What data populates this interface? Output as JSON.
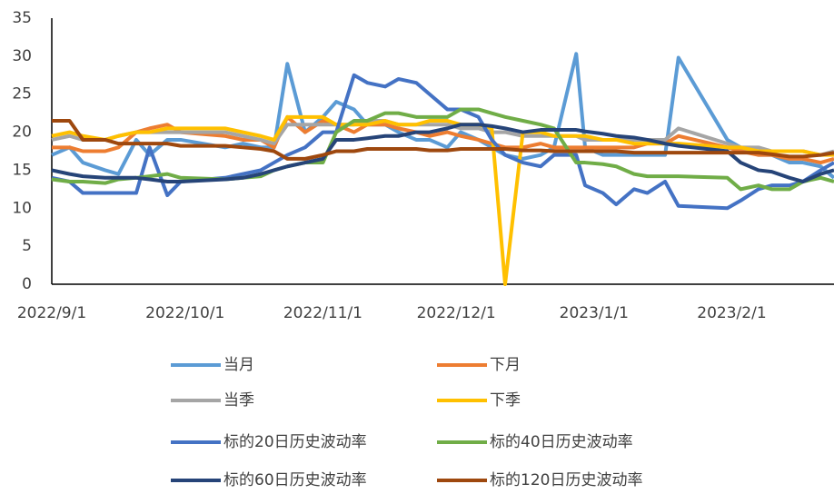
{
  "chart_data": {
    "type": "line",
    "x": [
      "2022/9/1",
      "2022/9/5",
      "2022/9/8",
      "2022/9/13",
      "2022/9/16",
      "2022/9/20",
      "2022/9/23",
      "2022/9/27",
      "2022/9/30",
      "2022/10/10",
      "2022/10/14",
      "2022/10/18",
      "2022/10/21",
      "2022/10/24",
      "2022/10/28",
      "2022/11/1",
      "2022/11/4",
      "2022/11/8",
      "2022/11/11",
      "2022/11/15",
      "2022/11/18",
      "2022/11/22",
      "2022/11/25",
      "2022/11/29",
      "2022/12/2",
      "2022/12/6",
      "2022/12/9",
      "2022/12/12",
      "2022/12/16",
      "2022/12/20",
      "2022/12/23",
      "2022/12/28",
      "2022/12/30",
      "2023/1/3",
      "2023/1/6",
      "2023/1/10",
      "2023/1/13",
      "2023/1/17",
      "2023/1/20",
      "2023/1/31",
      "2023/2/3",
      "2023/2/7",
      "2023/2/10",
      "2023/2/14",
      "2023/2/17",
      "2023/2/21",
      "2023/2/24"
    ],
    "xlim": [
      "2022/9/1",
      "2023/2/24"
    ],
    "xticks": [
      "2022/9/1",
      "2022/10/1",
      "2022/11/1",
      "2022/12/1",
      "2023/1/1",
      "2023/2/1"
    ],
    "ylim": [
      0,
      35
    ],
    "yticks": [
      0,
      5,
      10,
      15,
      20,
      25,
      30,
      35
    ],
    "grid": false,
    "series": [
      {
        "name": "当月",
        "color": "#5b9bd5",
        "values": [
          17,
          18,
          16,
          15,
          14.5,
          19,
          17,
          19,
          19,
          18,
          18.5,
          18,
          18,
          29,
          20,
          22,
          24,
          23,
          21,
          21,
          20,
          19,
          19,
          18,
          20,
          19,
          18,
          17,
          16.5,
          17,
          18,
          30.3,
          18,
          17,
          17,
          17,
          17,
          17,
          29.8,
          19,
          18,
          17,
          17,
          16,
          16,
          15.5,
          14
        ]
      },
      {
        "name": "下月",
        "color": "#ed7d31",
        "values": [
          18,
          18,
          17.5,
          17.5,
          18,
          20,
          20.5,
          21,
          20,
          19.5,
          19,
          19,
          18,
          22,
          20,
          21.5,
          21,
          20,
          21,
          21,
          20.5,
          20,
          19.5,
          20,
          19.5,
          19,
          18.5,
          18,
          18,
          18.5,
          18,
          18,
          18,
          18,
          18,
          18,
          18.5,
          18.5,
          19.5,
          18,
          17.5,
          17,
          17,
          16.5,
          16.5,
          16,
          16.5
        ]
      },
      {
        "name": "当季",
        "color": "#a5a5a5",
        "values": [
          19,
          19.5,
          19,
          19,
          19.5,
          20,
          20,
          20,
          20,
          20,
          19.5,
          19,
          18.5,
          21,
          21,
          21,
          21,
          21,
          21.5,
          21.5,
          21,
          21,
          21,
          21,
          20.5,
          20.5,
          20,
          20,
          19.5,
          19.5,
          19.5,
          19.5,
          19,
          19,
          19,
          19,
          19,
          19,
          20.5,
          18.5,
          18,
          18,
          17.5,
          17.5,
          17.5,
          17,
          17.5
        ]
      },
      {
        "name": "下季",
        "color": "#ffc000",
        "values": [
          19.5,
          20,
          19.5,
          19,
          19.5,
          20,
          20,
          20.5,
          20.5,
          20.5,
          20,
          19.5,
          19,
          22,
          22,
          22,
          21,
          21,
          21,
          21.5,
          21,
          21,
          21.5,
          21.5,
          21,
          21,
          20.5,
          0,
          20,
          20,
          19.5,
          19.5,
          19.5,
          19,
          19,
          18.5,
          18.5,
          18.5,
          18.5,
          18,
          18,
          17.5,
          17.5,
          17.5,
          17.5,
          17,
          17
        ]
      },
      {
        "name": "标的20日历史波动率",
        "color": "#4472c4",
        "values": [
          14,
          13.5,
          12,
          12,
          12,
          12,
          18,
          11.7,
          13.5,
          14,
          14.5,
          15,
          16,
          17,
          18,
          20,
          20,
          27.5,
          26.5,
          26,
          27,
          26.5,
          25,
          23,
          23,
          22,
          19,
          17,
          16,
          15.5,
          17,
          17,
          13,
          12,
          10.5,
          12.5,
          12,
          13.5,
          10.3,
          10,
          11,
          12.5,
          13,
          13,
          13.5,
          15,
          16
        ]
      },
      {
        "name": "标的40日历史波动率",
        "color": "#70ad47",
        "values": [
          13.8,
          13.5,
          13.5,
          13.3,
          13.8,
          14,
          14.2,
          14.5,
          14,
          13.8,
          14,
          14.2,
          15,
          15.5,
          16,
          16,
          20,
          21.5,
          21.5,
          22.5,
          22.5,
          22,
          22,
          22,
          23,
          23,
          22.5,
          22,
          21.5,
          21,
          20.5,
          16,
          16,
          15.8,
          15.5,
          14.5,
          14.2,
          14.2,
          14.2,
          14,
          12.5,
          13,
          12.5,
          12.5,
          13.5,
          14,
          13.5
        ]
      },
      {
        "name": "标的60日历史波动率",
        "color": "#264478",
        "values": [
          15,
          14.5,
          14.2,
          14,
          14,
          14,
          13.8,
          13.5,
          13.5,
          13.8,
          14,
          14.5,
          15,
          15.5,
          16,
          16.5,
          19,
          19,
          19.2,
          19.5,
          19.5,
          20,
          20,
          20.5,
          21,
          21,
          20.8,
          20.5,
          20,
          20.3,
          20.3,
          20.3,
          20.1,
          19.8,
          19.5,
          19.3,
          19,
          18.5,
          18.2,
          17.5,
          16,
          15,
          14.8,
          14,
          13.5,
          14.5,
          15
        ]
      },
      {
        "name": "标的120日历史波动率",
        "color": "#9e480e",
        "values": [
          21.5,
          21.5,
          19,
          19,
          18.5,
          18.5,
          18.5,
          18.5,
          18.2,
          18.2,
          18,
          17.8,
          17.5,
          16.5,
          16.5,
          17,
          17.5,
          17.5,
          17.8,
          17.8,
          17.8,
          17.8,
          17.6,
          17.6,
          17.8,
          17.8,
          17.8,
          17.8,
          17.6,
          17.6,
          17.5,
          17.5,
          17.5,
          17.5,
          17.5,
          17.3,
          17.3,
          17.3,
          17.3,
          17.3,
          17.3,
          17.3,
          17.1,
          16.8,
          16.8,
          17,
          17.3
        ]
      }
    ]
  }
}
